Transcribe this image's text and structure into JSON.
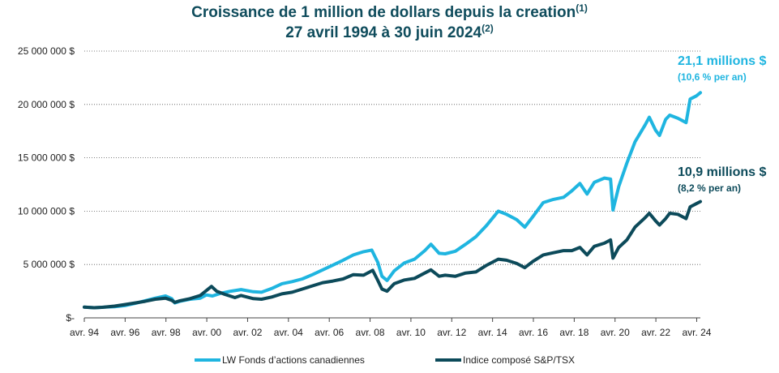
{
  "chart_data": {
    "type": "line",
    "title": "Croissance de 1 million de dollars depuis la creation",
    "title_note": "(1)",
    "subtitle": "27 avril 1994 à 30 juin 2024",
    "subtitle_note": "(2)",
    "xlabel": "",
    "ylabel": "",
    "xlim": [
      1994.32,
      2024.5
    ],
    "ylim": [
      0,
      25000000
    ],
    "x_ticks": [
      1994.32,
      1996.32,
      1998.32,
      2000.32,
      2002.32,
      2004.32,
      2006.32,
      2008.32,
      2010.32,
      2012.32,
      2014.32,
      2016.32,
      2018.32,
      2020.32,
      2022.32,
      2024.32
    ],
    "x_tick_labels": [
      "avr. 94",
      "avr. 96",
      "avr. 98",
      "avr. 00",
      "avr. 02",
      "avr. 04",
      "avr. 06",
      "avr. 08",
      "avr. 10",
      "avr. 12",
      "avr. 14",
      "avr. 16",
      "avr. 18",
      "avr. 20",
      "avr. 22",
      "avr. 24"
    ],
    "y_ticks": [
      0,
      5000000,
      10000000,
      15000000,
      20000000,
      25000000
    ],
    "y_tick_labels": [
      "$-",
      "5 000 000 $",
      "10 000 000 $",
      "15 000 000 $",
      "20 000 000 $",
      "25 000 000 $"
    ],
    "grid": "horizontal dotted",
    "legend_position": "bottom",
    "series": [
      {
        "name": "LW Fonds d’actions canadiennes",
        "color": "#1fb5e0",
        "points": [
          [
            1994.32,
            1000000
          ],
          [
            1994.8,
            950000
          ],
          [
            1995.3,
            1000000
          ],
          [
            1995.8,
            1050000
          ],
          [
            1996.3,
            1150000
          ],
          [
            1996.8,
            1350000
          ],
          [
            1997.3,
            1600000
          ],
          [
            1997.8,
            1850000
          ],
          [
            1998.3,
            2050000
          ],
          [
            1998.6,
            1800000
          ],
          [
            1998.75,
            1400000
          ],
          [
            1999.0,
            1550000
          ],
          [
            1999.5,
            1750000
          ],
          [
            2000.0,
            1850000
          ],
          [
            2000.3,
            2150000
          ],
          [
            2000.6,
            2050000
          ],
          [
            2001.0,
            2300000
          ],
          [
            2001.5,
            2500000
          ],
          [
            2002.0,
            2650000
          ],
          [
            2002.6,
            2450000
          ],
          [
            2003.0,
            2400000
          ],
          [
            2003.5,
            2750000
          ],
          [
            2004.0,
            3200000
          ],
          [
            2004.5,
            3400000
          ],
          [
            2005.0,
            3650000
          ],
          [
            2005.5,
            4050000
          ],
          [
            2006.0,
            4500000
          ],
          [
            2006.5,
            4950000
          ],
          [
            2007.0,
            5400000
          ],
          [
            2007.5,
            5900000
          ],
          [
            2008.0,
            6200000
          ],
          [
            2008.4,
            6350000
          ],
          [
            2008.7,
            5200000
          ],
          [
            2008.9,
            3900000
          ],
          [
            2009.15,
            3500000
          ],
          [
            2009.5,
            4400000
          ],
          [
            2010.0,
            5150000
          ],
          [
            2010.5,
            5500000
          ],
          [
            2011.0,
            6300000
          ],
          [
            2011.3,
            6900000
          ],
          [
            2011.7,
            6050000
          ],
          [
            2012.0,
            6000000
          ],
          [
            2012.5,
            6250000
          ],
          [
            2013.0,
            6900000
          ],
          [
            2013.5,
            7600000
          ],
          [
            2014.0,
            8600000
          ],
          [
            2014.6,
            10000000
          ],
          [
            2015.0,
            9700000
          ],
          [
            2015.5,
            9200000
          ],
          [
            2015.9,
            8500000
          ],
          [
            2016.3,
            9500000
          ],
          [
            2016.8,
            10800000
          ],
          [
            2017.3,
            11100000
          ],
          [
            2017.8,
            11300000
          ],
          [
            2018.2,
            11900000
          ],
          [
            2018.6,
            12600000
          ],
          [
            2018.95,
            11600000
          ],
          [
            2019.3,
            12700000
          ],
          [
            2019.8,
            13100000
          ],
          [
            2020.1,
            13000000
          ],
          [
            2020.22,
            10100000
          ],
          [
            2020.5,
            12300000
          ],
          [
            2020.9,
            14500000
          ],
          [
            2021.3,
            16500000
          ],
          [
            2021.8,
            18100000
          ],
          [
            2022.0,
            18800000
          ],
          [
            2022.3,
            17600000
          ],
          [
            2022.5,
            17100000
          ],
          [
            2022.8,
            18600000
          ],
          [
            2023.0,
            19000000
          ],
          [
            2023.4,
            18700000
          ],
          [
            2023.8,
            18300000
          ],
          [
            2024.0,
            20500000
          ],
          [
            2024.3,
            20800000
          ],
          [
            2024.5,
            21100000
          ]
        ],
        "end_label": "21,1 millions $",
        "end_note": "(10,6 % per an)"
      },
      {
        "name": "Indice composé S&P/TSX",
        "color": "#0c4a5a",
        "points": [
          [
            1994.32,
            1000000
          ],
          [
            1994.8,
            950000
          ],
          [
            1995.3,
            1000000
          ],
          [
            1995.8,
            1100000
          ],
          [
            1996.3,
            1250000
          ],
          [
            1996.8,
            1400000
          ],
          [
            1997.3,
            1550000
          ],
          [
            1997.8,
            1750000
          ],
          [
            1998.3,
            1850000
          ],
          [
            1998.6,
            1650000
          ],
          [
            1998.75,
            1450000
          ],
          [
            1999.0,
            1600000
          ],
          [
            1999.5,
            1800000
          ],
          [
            2000.0,
            2100000
          ],
          [
            2000.55,
            2950000
          ],
          [
            2000.8,
            2500000
          ],
          [
            2001.2,
            2200000
          ],
          [
            2001.7,
            1900000
          ],
          [
            2002.0,
            2100000
          ],
          [
            2002.6,
            1800000
          ],
          [
            2003.0,
            1750000
          ],
          [
            2003.5,
            1950000
          ],
          [
            2004.0,
            2250000
          ],
          [
            2004.5,
            2400000
          ],
          [
            2005.0,
            2700000
          ],
          [
            2005.5,
            3000000
          ],
          [
            2006.0,
            3300000
          ],
          [
            2006.5,
            3450000
          ],
          [
            2007.0,
            3650000
          ],
          [
            2007.5,
            4050000
          ],
          [
            2008.0,
            4000000
          ],
          [
            2008.45,
            4450000
          ],
          [
            2008.7,
            3500000
          ],
          [
            2008.9,
            2700000
          ],
          [
            2009.15,
            2500000
          ],
          [
            2009.5,
            3200000
          ],
          [
            2010.0,
            3550000
          ],
          [
            2010.5,
            3700000
          ],
          [
            2011.0,
            4200000
          ],
          [
            2011.3,
            4500000
          ],
          [
            2011.7,
            3900000
          ],
          [
            2012.0,
            4000000
          ],
          [
            2012.5,
            3900000
          ],
          [
            2013.0,
            4200000
          ],
          [
            2013.5,
            4300000
          ],
          [
            2014.0,
            4900000
          ],
          [
            2014.6,
            5500000
          ],
          [
            2015.0,
            5400000
          ],
          [
            2015.5,
            5100000
          ],
          [
            2015.9,
            4700000
          ],
          [
            2016.3,
            5300000
          ],
          [
            2016.8,
            5900000
          ],
          [
            2017.3,
            6100000
          ],
          [
            2017.8,
            6300000
          ],
          [
            2018.2,
            6300000
          ],
          [
            2018.6,
            6600000
          ],
          [
            2018.95,
            5900000
          ],
          [
            2019.3,
            6700000
          ],
          [
            2019.8,
            7000000
          ],
          [
            2020.1,
            7300000
          ],
          [
            2020.22,
            5600000
          ],
          [
            2020.5,
            6600000
          ],
          [
            2020.9,
            7300000
          ],
          [
            2021.3,
            8500000
          ],
          [
            2021.8,
            9400000
          ],
          [
            2022.0,
            9800000
          ],
          [
            2022.3,
            9100000
          ],
          [
            2022.5,
            8700000
          ],
          [
            2022.8,
            9300000
          ],
          [
            2023.0,
            9800000
          ],
          [
            2023.4,
            9700000
          ],
          [
            2023.8,
            9300000
          ],
          [
            2024.0,
            10400000
          ],
          [
            2024.3,
            10700000
          ],
          [
            2024.5,
            10900000
          ]
        ],
        "end_label": "10,9 millions $",
        "end_note": "(8,2 % per an)"
      }
    ]
  }
}
